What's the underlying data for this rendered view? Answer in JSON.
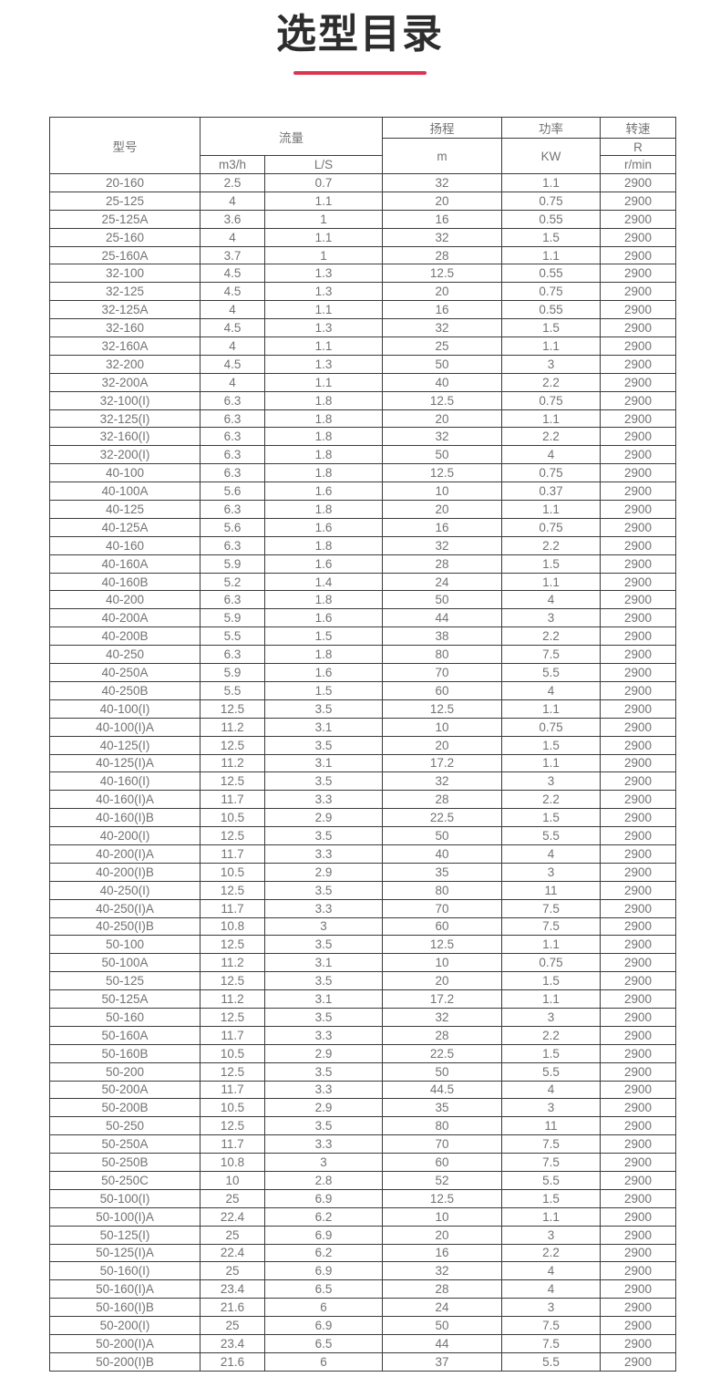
{
  "page": {
    "title": "选型目录"
  },
  "accent_color": "#dc3551",
  "table": {
    "headers": {
      "model": "型号",
      "flow": "流量",
      "flow_m3h": "m3/h",
      "flow_ls": "L/S",
      "head": "扬程",
      "head_unit": "m",
      "power": "功率",
      "power_unit": "KW",
      "speed": "转速",
      "speed_r": "R",
      "speed_unit": "r/min"
    },
    "rows": [
      [
        "20-160",
        "2.5",
        "0.7",
        "32",
        "1.1",
        "2900"
      ],
      [
        "25-125",
        "4",
        "1.1",
        "20",
        "0.75",
        "2900"
      ],
      [
        "25-125A",
        "3.6",
        "1",
        "16",
        "0.55",
        "2900"
      ],
      [
        "25-160",
        "4",
        "1.1",
        "32",
        "1.5",
        "2900"
      ],
      [
        "25-160A",
        "3.7",
        "1",
        "28",
        "1.1",
        "2900"
      ],
      [
        "32-100",
        "4.5",
        "1.3",
        "12.5",
        "0.55",
        "2900"
      ],
      [
        "32-125",
        "4.5",
        "1.3",
        "20",
        "0.75",
        "2900"
      ],
      [
        "32-125A",
        "4",
        "1.1",
        "16",
        "0.55",
        "2900"
      ],
      [
        "32-160",
        "4.5",
        "1.3",
        "32",
        "1.5",
        "2900"
      ],
      [
        "32-160A",
        "4",
        "1.1",
        "25",
        "1.1",
        "2900"
      ],
      [
        "32-200",
        "4.5",
        "1.3",
        "50",
        "3",
        "2900"
      ],
      [
        "32-200A",
        "4",
        "1.1",
        "40",
        "2.2",
        "2900"
      ],
      [
        "32-100(I)",
        "6.3",
        "1.8",
        "12.5",
        "0.75",
        "2900"
      ],
      [
        "32-125(I)",
        "6.3",
        "1.8",
        "20",
        "1.1",
        "2900"
      ],
      [
        "32-160(I)",
        "6.3",
        "1.8",
        "32",
        "2.2",
        "2900"
      ],
      [
        "32-200(I)",
        "6.3",
        "1.8",
        "50",
        "4",
        "2900"
      ],
      [
        "40-100",
        "6.3",
        "1.8",
        "12.5",
        "0.75",
        "2900"
      ],
      [
        "40-100A",
        "5.6",
        "1.6",
        "10",
        "0.37",
        "2900"
      ],
      [
        "40-125",
        "6.3",
        "1.8",
        "20",
        "1.1",
        "2900"
      ],
      [
        "40-125A",
        "5.6",
        "1.6",
        "16",
        "0.75",
        "2900"
      ],
      [
        "40-160",
        "6.3",
        "1.8",
        "32",
        "2.2",
        "2900"
      ],
      [
        "40-160A",
        "5.9",
        "1.6",
        "28",
        "1.5",
        "2900"
      ],
      [
        "40-160B",
        "5.2",
        "1.4",
        "24",
        "1.1",
        "2900"
      ],
      [
        "40-200",
        "6.3",
        "1.8",
        "50",
        "4",
        "2900"
      ],
      [
        "40-200A",
        "5.9",
        "1.6",
        "44",
        "3",
        "2900"
      ],
      [
        "40-200B",
        "5.5",
        "1.5",
        "38",
        "2.2",
        "2900"
      ],
      [
        "40-250",
        "6.3",
        "1.8",
        "80",
        "7.5",
        "2900"
      ],
      [
        "40-250A",
        "5.9",
        "1.6",
        "70",
        "5.5",
        "2900"
      ],
      [
        "40-250B",
        "5.5",
        "1.5",
        "60",
        "4",
        "2900"
      ],
      [
        "40-100(I)",
        "12.5",
        "3.5",
        "12.5",
        "1.1",
        "2900"
      ],
      [
        "40-100(I)A",
        "11.2",
        "3.1",
        "10",
        "0.75",
        "2900"
      ],
      [
        "40-125(I)",
        "12.5",
        "3.5",
        "20",
        "1.5",
        "2900"
      ],
      [
        "40-125(I)A",
        "11.2",
        "3.1",
        "17.2",
        "1.1",
        "2900"
      ],
      [
        "40-160(I)",
        "12.5",
        "3.5",
        "32",
        "3",
        "2900"
      ],
      [
        "40-160(I)A",
        "11.7",
        "3.3",
        "28",
        "2.2",
        "2900"
      ],
      [
        "40-160(I)B",
        "10.5",
        "2.9",
        "22.5",
        "1.5",
        "2900"
      ],
      [
        "40-200(I)",
        "12.5",
        "3.5",
        "50",
        "5.5",
        "2900"
      ],
      [
        "40-200(I)A",
        "11.7",
        "3.3",
        "40",
        "4",
        "2900"
      ],
      [
        "40-200(I)B",
        "10.5",
        "2.9",
        "35",
        "3",
        "2900"
      ],
      [
        "40-250(I)",
        "12.5",
        "3.5",
        "80",
        "11",
        "2900"
      ],
      [
        "40-250(I)A",
        "11.7",
        "3.3",
        "70",
        "7.5",
        "2900"
      ],
      [
        "40-250(I)B",
        "10.8",
        "3",
        "60",
        "7.5",
        "2900"
      ],
      [
        "50-100",
        "12.5",
        "3.5",
        "12.5",
        "1.1",
        "2900"
      ],
      [
        "50-100A",
        "11.2",
        "3.1",
        "10",
        "0.75",
        "2900"
      ],
      [
        "50-125",
        "12.5",
        "3.5",
        "20",
        "1.5",
        "2900"
      ],
      [
        "50-125A",
        "11.2",
        "3.1",
        "17.2",
        "1.1",
        "2900"
      ],
      [
        "50-160",
        "12.5",
        "3.5",
        "32",
        "3",
        "2900"
      ],
      [
        "50-160A",
        "11.7",
        "3.3",
        "28",
        "2.2",
        "2900"
      ],
      [
        "50-160B",
        "10.5",
        "2.9",
        "22.5",
        "1.5",
        "2900"
      ],
      [
        "50-200",
        "12.5",
        "3.5",
        "50",
        "5.5",
        "2900"
      ],
      [
        "50-200A",
        "11.7",
        "3.3",
        "44.5",
        "4",
        "2900"
      ],
      [
        "50-200B",
        "10.5",
        "2.9",
        "35",
        "3",
        "2900"
      ],
      [
        "50-250",
        "12.5",
        "3.5",
        "80",
        "11",
        "2900"
      ],
      [
        "50-250A",
        "11.7",
        "3.3",
        "70",
        "7.5",
        "2900"
      ],
      [
        "50-250B",
        "10.8",
        "3",
        "60",
        "7.5",
        "2900"
      ],
      [
        "50-250C",
        "10",
        "2.8",
        "52",
        "5.5",
        "2900"
      ],
      [
        "50-100(I)",
        "25",
        "6.9",
        "12.5",
        "1.5",
        "2900"
      ],
      [
        "50-100(I)A",
        "22.4",
        "6.2",
        "10",
        "1.1",
        "2900"
      ],
      [
        "50-125(I)",
        "25",
        "6.9",
        "20",
        "3",
        "2900"
      ],
      [
        "50-125(I)A",
        "22.4",
        "6.2",
        "16",
        "2.2",
        "2900"
      ],
      [
        "50-160(I)",
        "25",
        "6.9",
        "32",
        "4",
        "2900"
      ],
      [
        "50-160(I)A",
        "23.4",
        "6.5",
        "28",
        "4",
        "2900"
      ],
      [
        "50-160(I)B",
        "21.6",
        "6",
        "24",
        "3",
        "2900"
      ],
      [
        "50-200(I)",
        "25",
        "6.9",
        "50",
        "7.5",
        "2900"
      ],
      [
        "50-200(I)A",
        "23.4",
        "6.5",
        "44",
        "7.5",
        "2900"
      ],
      [
        "50-200(I)B",
        "21.6",
        "6",
        "37",
        "5.5",
        "2900"
      ]
    ]
  }
}
